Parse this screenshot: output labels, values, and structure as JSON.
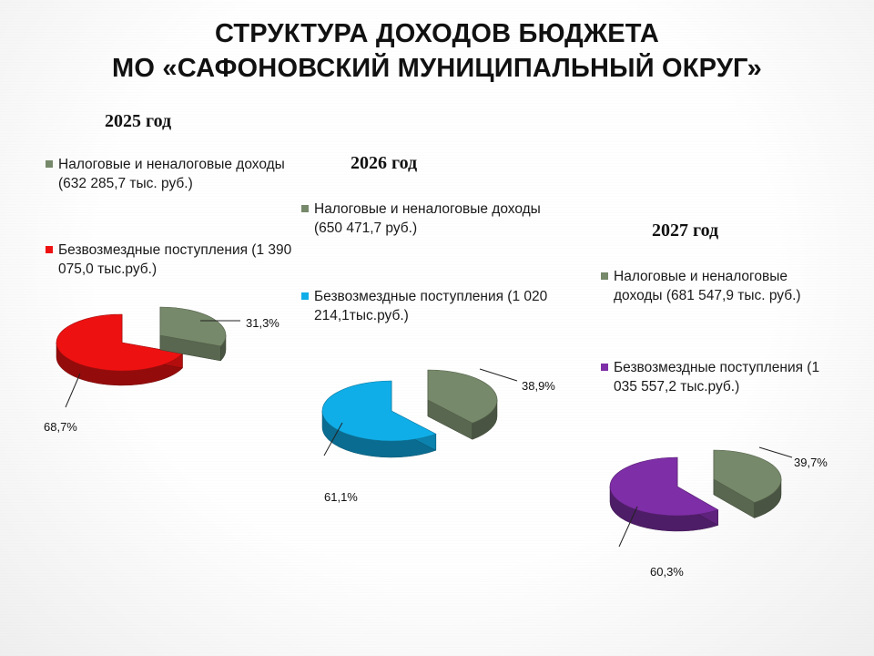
{
  "title": {
    "line1": "СТРУКТУРА ДОХОДОВ БЮДЖЕТА",
    "line2": "МО «САФОНОВСКИЙ МУНИЦИПАЛЬНЫЙ ОКРУГ»"
  },
  "colors": {
    "tax": "#76896a",
    "gratuitous_2025": "#ee1111",
    "gratuitous_2026": "#10aee8",
    "gratuitous_2027": "#7e2ea6"
  },
  "chart_data": [
    {
      "type": "pie",
      "title": "2025 год",
      "legend": [
        "Налоговые и неналоговые доходы (632 285,7 тыс. руб.)",
        "Безвозмездные поступления (1 390 075,0 тыс.руб.)"
      ],
      "slices": [
        {
          "label": "Налоговые и неналоговые доходы",
          "value": 31.3,
          "display": "31,3%",
          "color": "#76896a"
        },
        {
          "label": "Безвозмездные поступления",
          "value": 68.7,
          "display": "68,7%",
          "color": "#ee1111"
        }
      ]
    },
    {
      "type": "pie",
      "title": "2026 год",
      "legend": [
        "Налоговые и неналоговые доходы (650 471,7 руб.)",
        "Безвозмездные поступления (1 020 214,1тыс.руб.)"
      ],
      "slices": [
        {
          "label": "Налоговые и неналоговые доходы",
          "value": 38.9,
          "display": "38,9%",
          "color": "#76896a"
        },
        {
          "label": "Безвозмездные поступления",
          "value": 61.1,
          "display": "61,1%",
          "color": "#10aee8"
        }
      ]
    },
    {
      "type": "pie",
      "title": "2027 год",
      "legend": [
        "Налоговые и неналоговые доходы (681 547,9 тыс. руб.)",
        "Безвозмездные поступления (1 035 557,2 тыс.руб.)"
      ],
      "slices": [
        {
          "label": "Налоговые и неналоговые доходы",
          "value": 39.7,
          "display": "39,7%",
          "color": "#76896a"
        },
        {
          "label": "Безвозмездные поступления",
          "value": 60.3,
          "display": "60,3%",
          "color": "#7e2ea6"
        }
      ]
    }
  ]
}
